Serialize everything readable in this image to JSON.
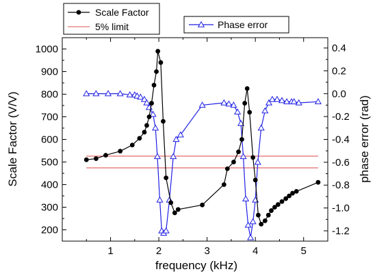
{
  "chart_data": {
    "type": "line",
    "xlabel": "frequency (kHz)",
    "ylabel_left": "Scale Factor (V/V)",
    "ylabel_right": "phase error (rad)",
    "xlim": [
      0.0,
      5.5
    ],
    "ylim_left": [
      150,
      1050
    ],
    "ylim_right": [
      -1.29,
      0.49
    ],
    "grid": false,
    "x_ticks": [
      1,
      2,
      3,
      4,
      5
    ],
    "x_tick_labels": [
      "1",
      "2",
      "3",
      "4",
      "5"
    ],
    "y_left_ticks": [
      200,
      300,
      400,
      500,
      600,
      700,
      800,
      900,
      1000
    ],
    "y_left_tick_labels": [
      "200",
      "300",
      "400",
      "500",
      "600",
      "700",
      "800",
      "900",
      "1000"
    ],
    "y_right_ticks": [
      -1.2,
      -1.0,
      -0.8,
      -0.6,
      -0.4,
      -0.2,
      0.0,
      0.2,
      0.4
    ],
    "y_right_tick_labels": [
      "-1.2",
      "-1.0",
      "-0.8",
      "-0.6",
      "-0.4",
      "-0.2",
      "0.0",
      "0.2",
      "0.4"
    ],
    "legend": [
      {
        "label": "Scale Factor",
        "placement": "top-left"
      },
      {
        "label": "5% limit",
        "placement": "top-left"
      },
      {
        "label": "Phase error",
        "placement": "top-center"
      }
    ],
    "series": [
      {
        "name": "Scale Factor",
        "axis": "left",
        "color": "#000000",
        "marker": "circle",
        "x": [
          0.5,
          0.7,
          0.9,
          1.2,
          1.45,
          1.6,
          1.7,
          1.75,
          1.8,
          1.85,
          1.9,
          1.95,
          1.98,
          2.04,
          2.09,
          2.15,
          2.25,
          2.33,
          2.4,
          2.9,
          3.35,
          3.42,
          3.55,
          3.65,
          3.72,
          3.78,
          3.83,
          3.88,
          3.95,
          4.0,
          4.06,
          4.12,
          4.2,
          4.27,
          4.33,
          4.4,
          4.47,
          4.55,
          4.63,
          4.7,
          4.77,
          4.85,
          5.3
        ],
        "values": [
          510,
          515,
          530,
          548,
          575,
          605,
          632,
          662,
          700,
          760,
          840,
          900,
          990,
          940,
          680,
          430,
          320,
          275,
          290,
          310,
          400,
          470,
          500,
          545,
          600,
          760,
          825,
          720,
          520,
          420,
          265,
          225,
          240,
          265,
          285,
          300,
          312,
          325,
          338,
          350,
          362,
          370,
          410
        ]
      },
      {
        "name": "5% limit",
        "axis": "left",
        "color": "#e98b8b",
        "marker": "none",
        "lines": [
          {
            "x": [
              0.5,
              5.3
            ],
            "value": 526
          },
          {
            "x": [
              0.5,
              5.3
            ],
            "value": 474
          }
        ]
      },
      {
        "name": "Phase error",
        "axis": "right",
        "color": "#1f1fe6",
        "marker": "triangle",
        "x": [
          0.5,
          0.7,
          0.95,
          1.2,
          1.4,
          1.5,
          1.55,
          1.62,
          1.7,
          1.75,
          1.8,
          1.88,
          1.93,
          1.97,
          2.02,
          2.06,
          2.1,
          2.15,
          2.22,
          2.3,
          2.36,
          2.45,
          2.9,
          3.35,
          3.45,
          3.55,
          3.63,
          3.7,
          3.75,
          3.8,
          3.85,
          3.9,
          3.95,
          4.0,
          4.05,
          4.12,
          4.2,
          4.28,
          4.35,
          4.45,
          4.55,
          4.65,
          4.75,
          4.8,
          4.9,
          5.3
        ],
        "values": [
          0.0,
          0.0,
          0.0,
          0.0,
          -0.01,
          -0.01,
          -0.02,
          -0.03,
          -0.05,
          -0.08,
          -0.12,
          -0.18,
          -0.3,
          -0.55,
          -0.93,
          -1.2,
          -1.22,
          -1.2,
          -0.93,
          -0.55,
          -0.4,
          -0.36,
          -0.1,
          -0.08,
          -0.09,
          -0.1,
          -0.16,
          -0.26,
          -0.55,
          -0.92,
          -1.15,
          -1.26,
          -1.12,
          -0.93,
          -0.6,
          -0.3,
          -0.15,
          -0.08,
          -0.05,
          -0.05,
          -0.06,
          -0.07,
          -0.07,
          -0.07,
          -0.08,
          -0.07
        ]
      }
    ]
  }
}
